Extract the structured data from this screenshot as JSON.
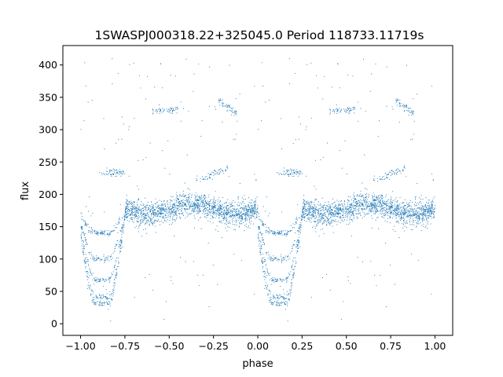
{
  "chart_data": {
    "type": "scatter",
    "title": "1SWASPJ000318.22+325045.0 Period 118733.11719s",
    "xlabel": "phase",
    "ylabel": "flux",
    "xlim": [
      -1.1,
      1.1
    ],
    "ylim": [
      -18,
      430
    ],
    "xticks": [
      -1.0,
      -0.75,
      -0.5,
      -0.25,
      0.0,
      0.25,
      0.5,
      0.75,
      1.0
    ],
    "xtick_labels": [
      "−1.00",
      "−0.75",
      "−0.50",
      "−0.25",
      "0.00",
      "0.25",
      "0.50",
      "0.75",
      "1.00"
    ],
    "yticks": [
      0,
      50,
      100,
      150,
      200,
      250,
      300,
      350,
      400
    ],
    "ytick_labels": [
      "0",
      "50",
      "100",
      "150",
      "200",
      "250",
      "300",
      "350",
      "400"
    ],
    "marker_color": "#1f77b4",
    "grid": false,
    "series": [
      {
        "description_of_structure": "phase-folded light curve repeated over two cycles (-1..0 and 0..1)",
        "baseline_band": {
          "flux_min": 150,
          "flux_max": 200,
          "center": 177
        },
        "eclipse_dips": [
          {
            "phase_center": 0.12,
            "phase_start": 0.0,
            "phase_end": 0.25,
            "min_flux": 32
          },
          {
            "phase_center": -0.88,
            "phase_start": -1.0,
            "phase_end": -0.75,
            "min_flux": 32
          }
        ],
        "secondary_tracks": [
          {
            "phase": [
              0.12,
              0.25
            ],
            "flux": 233
          },
          {
            "phase": [
              0.65,
              0.83
            ],
            "flux": [
              220,
              240
            ]
          },
          {
            "phase": [
              0.4,
              0.55
            ],
            "flux": 330
          },
          {
            "phase": [
              0.78,
              0.88
            ],
            "flux": [
              345,
              325
            ]
          }
        ],
        "outlier_range": {
          "flux_min": 0,
          "flux_max": 410
        }
      }
    ]
  }
}
